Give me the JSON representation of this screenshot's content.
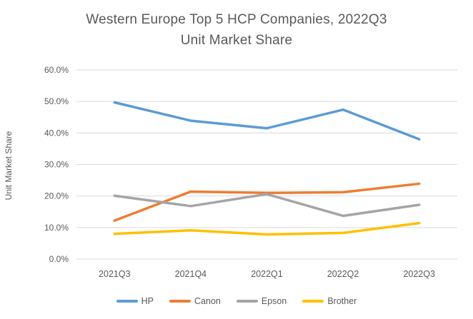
{
  "title": {
    "line1": "Western Europe Top 5 HCP Companies, 2022Q3",
    "line2": "Unit Market Share"
  },
  "chart_data": {
    "type": "line",
    "title": "Western Europe Top 5 HCP Companies, 2022Q3 Unit Market Share",
    "categories": [
      "2021Q3",
      "2021Q4",
      "2022Q1",
      "2022Q2",
      "2022Q3"
    ],
    "series": [
      {
        "name": "HP",
        "color": "#5B9BD5",
        "values": [
          49.7,
          43.9,
          41.5,
          47.4,
          38.0
        ]
      },
      {
        "name": "Canon",
        "color": "#ED7D31",
        "values": [
          12.2,
          21.4,
          21.0,
          21.2,
          23.9
        ]
      },
      {
        "name": "Epson",
        "color": "#A5A5A5",
        "values": [
          20.1,
          16.8,
          20.6,
          13.7,
          17.2
        ]
      },
      {
        "name": "Brother",
        "color": "#FFC000",
        "values": [
          8.0,
          9.1,
          7.8,
          8.3,
          11.4
        ]
      }
    ],
    "xlabel": "",
    "ylabel": "Unit Market Share",
    "ylim": [
      0,
      60
    ],
    "yticks": [
      0,
      10,
      20,
      30,
      40,
      50,
      60
    ],
    "ytick_labels": [
      "0.0%",
      "10.0%",
      "20.0%",
      "30.0%",
      "40.0%",
      "50.0%",
      "60.0%"
    ],
    "grid": true,
    "legend_position": "bottom",
    "colors": {
      "title_text": "#595959",
      "axis_text": "#595959",
      "legend_text": "#595959",
      "gridline": "#D9D9D9",
      "background": "#FFFFFF"
    }
  }
}
